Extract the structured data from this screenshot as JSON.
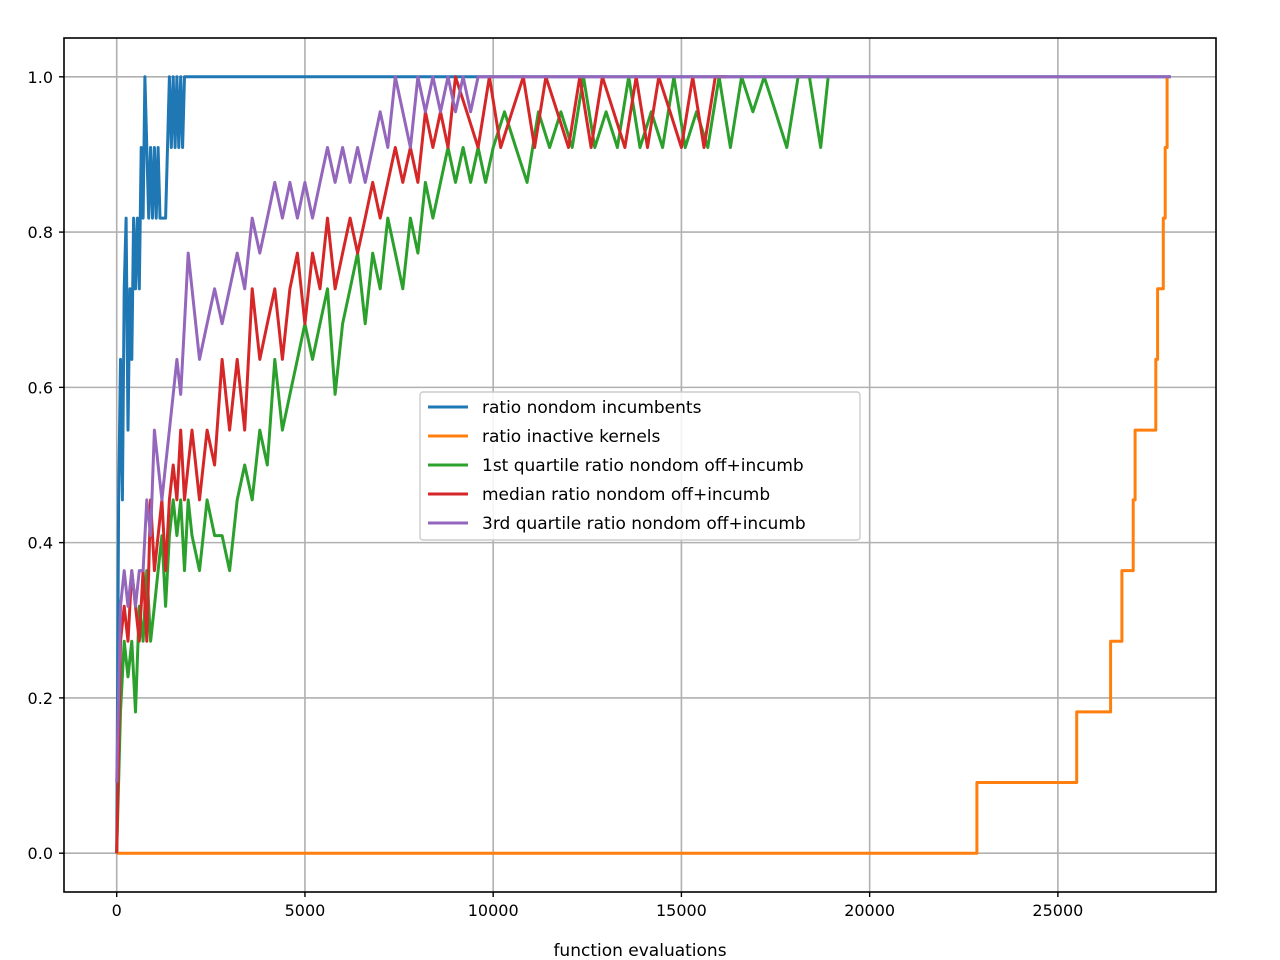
{
  "chart_data": {
    "type": "line",
    "title": "",
    "xlabel": "function evaluations",
    "ylabel": "",
    "xlim": [
      -1400,
      29200
    ],
    "ylim": [
      -0.05,
      1.05
    ],
    "xticks": [
      0,
      5000,
      10000,
      15000,
      20000,
      25000
    ],
    "xtick_labels": [
      "0",
      "5000",
      "10000",
      "15000",
      "20000",
      "25000"
    ],
    "yticks": [
      0.0,
      0.2,
      0.4,
      0.6,
      0.8,
      1.0
    ],
    "ytick_labels": [
      "0.0",
      "0.2",
      "0.4",
      "0.6",
      "0.8",
      "1.0"
    ],
    "grid": true,
    "legend_position": "center-right",
    "series": [
      {
        "name": "ratio nondom incumbents",
        "color": "#1f77b4",
        "x": [
          0,
          50,
          100,
          150,
          200,
          250,
          300,
          350,
          400,
          450,
          500,
          550,
          600,
          650,
          700,
          750,
          800,
          850,
          900,
          950,
          1000,
          1050,
          1100,
          1150,
          1200,
          1300,
          1400,
          1450,
          1500,
          1550,
          1600,
          1650,
          1700,
          1750,
          1800,
          28000
        ],
        "y": [
          0.0,
          0.455,
          0.636,
          0.455,
          0.727,
          0.818,
          0.545,
          0.727,
          0.636,
          0.818,
          0.727,
          0.818,
          0.727,
          0.909,
          0.818,
          1.0,
          0.909,
          0.818,
          0.909,
          0.818,
          0.909,
          0.818,
          0.909,
          0.818,
          0.818,
          0.818,
          1.0,
          0.909,
          1.0,
          0.909,
          1.0,
          0.909,
          1.0,
          0.909,
          1.0,
          1.0
        ]
      },
      {
        "name": "ratio inactive kernels",
        "color": "#ff7f0e",
        "x": [
          0,
          22850,
          22850,
          25500,
          25500,
          26400,
          26400,
          26700,
          26700,
          27000,
          27000,
          27050,
          27050,
          27600,
          27600,
          27650,
          27650,
          27800,
          27800,
          27850,
          27850,
          27900,
          27900
        ],
        "y": [
          0.0,
          0.0,
          0.091,
          0.091,
          0.182,
          0.182,
          0.273,
          0.273,
          0.364,
          0.364,
          0.455,
          0.455,
          0.545,
          0.545,
          0.636,
          0.636,
          0.727,
          0.727,
          0.818,
          0.818,
          0.909,
          0.909,
          1.0
        ]
      },
      {
        "name": "1st quartile ratio nondom off+incumb",
        "color": "#2ca02c",
        "x": [
          0,
          100,
          200,
          300,
          400,
          500,
          600,
          700,
          800,
          900,
          1000,
          1100,
          1200,
          1300,
          1400,
          1500,
          1600,
          1700,
          1800,
          1900,
          2000,
          2200,
          2400,
          2600,
          2800,
          3000,
          3200,
          3400,
          3600,
          3800,
          4000,
          4200,
          4400,
          4600,
          4800,
          5000,
          5200,
          5400,
          5600,
          5800,
          6000,
          6200,
          6400,
          6600,
          6800,
          7000,
          7200,
          7400,
          7600,
          7800,
          8000,
          8200,
          8400,
          8600,
          8800,
          9000,
          9200,
          9400,
          9600,
          9800,
          10000,
          10300,
          10600,
          10900,
          11200,
          11500,
          11800,
          12100,
          12400,
          12700,
          13000,
          13300,
          13600,
          13900,
          14200,
          14500,
          14800,
          15100,
          15400,
          15700,
          16000,
          16300,
          16600,
          16900,
          17200,
          17500,
          17800,
          18100,
          18400,
          18700,
          18900
        ],
        "y": [
          0.0,
          0.182,
          0.273,
          0.227,
          0.273,
          0.182,
          0.318,
          0.273,
          0.364,
          0.273,
          0.318,
          0.364,
          0.409,
          0.318,
          0.409,
          0.455,
          0.409,
          0.455,
          0.364,
          0.455,
          0.409,
          0.364,
          0.455,
          0.409,
          0.409,
          0.364,
          0.455,
          0.5,
          0.455,
          0.545,
          0.5,
          0.636,
          0.545,
          0.591,
          0.636,
          0.682,
          0.636,
          0.682,
          0.727,
          0.591,
          0.682,
          0.727,
          0.773,
          0.682,
          0.773,
          0.727,
          0.818,
          0.773,
          0.727,
          0.818,
          0.773,
          0.864,
          0.818,
          0.864,
          0.909,
          0.864,
          0.909,
          0.864,
          0.909,
          0.864,
          0.909,
          0.955,
          0.909,
          0.864,
          0.955,
          0.909,
          0.955,
          0.909,
          1.0,
          0.909,
          0.955,
          0.909,
          1.0,
          0.909,
          0.955,
          0.909,
          1.0,
          0.909,
          0.955,
          0.909,
          1.0,
          0.909,
          1.0,
          0.955,
          1.0,
          0.955,
          0.909,
          1.0,
          1.0,
          0.909,
          1.0
        ]
      },
      {
        "name": "median ratio nondom off+incumb",
        "color": "#d62728",
        "x": [
          0,
          100,
          200,
          300,
          400,
          500,
          600,
          700,
          800,
          900,
          1000,
          1100,
          1200,
          1300,
          1400,
          1500,
          1600,
          1700,
          1800,
          1900,
          2000,
          2200,
          2400,
          2600,
          2800,
          3000,
          3200,
          3400,
          3600,
          3800,
          4000,
          4200,
          4400,
          4600,
          4800,
          5000,
          5200,
          5400,
          5600,
          5800,
          6000,
          6200,
          6400,
          6600,
          6800,
          7000,
          7200,
          7400,
          7600,
          7800,
          8000,
          8200,
          8400,
          8600,
          8800,
          9000,
          9300,
          9600,
          9900,
          10200,
          10500,
          10800,
          11100,
          11400,
          11700,
          12000,
          12300,
          12600,
          12900,
          13200,
          13500,
          13800,
          14100,
          14400,
          14700,
          15000,
          15300,
          15600,
          15900,
          16200
        ],
        "y": [
          0.0,
          0.273,
          0.318,
          0.273,
          0.364,
          0.318,
          0.273,
          0.364,
          0.273,
          0.455,
          0.364,
          0.409,
          0.455,
          0.364,
          0.455,
          0.5,
          0.455,
          0.545,
          0.455,
          0.5,
          0.545,
          0.455,
          0.545,
          0.5,
          0.636,
          0.545,
          0.636,
          0.545,
          0.727,
          0.636,
          0.682,
          0.727,
          0.636,
          0.727,
          0.773,
          0.682,
          0.773,
          0.727,
          0.818,
          0.727,
          0.773,
          0.818,
          0.773,
          0.818,
          0.864,
          0.818,
          0.864,
          0.909,
          0.864,
          0.909,
          0.864,
          0.955,
          0.909,
          0.955,
          0.909,
          1.0,
          0.955,
          0.909,
          1.0,
          0.909,
          0.955,
          1.0,
          0.909,
          1.0,
          0.955,
          0.909,
          1.0,
          0.909,
          1.0,
          0.955,
          0.909,
          1.0,
          0.909,
          1.0,
          0.955,
          0.909,
          1.0,
          0.909,
          1.0,
          1.0
        ]
      },
      {
        "name": "3rd quartile ratio nondom off+incumb",
        "color": "#9467bd",
        "x": [
          0,
          100,
          200,
          300,
          400,
          500,
          600,
          700,
          800,
          900,
          1000,
          1100,
          1200,
          1300,
          1400,
          1500,
          1600,
          1700,
          1800,
          1900,
          2000,
          2200,
          2400,
          2600,
          2800,
          3000,
          3200,
          3400,
          3600,
          3800,
          4000,
          4200,
          4400,
          4600,
          4800,
          5000,
          5200,
          5400,
          5600,
          5800,
          6000,
          6200,
          6400,
          6600,
          6800,
          7000,
          7200,
          7400,
          7600,
          7800,
          8000,
          8200,
          8400,
          8600,
          8800,
          9000,
          9200,
          9400,
          9600,
          9800,
          10000,
          28000
        ],
        "y": [
          0.091,
          0.318,
          0.364,
          0.318,
          0.364,
          0.318,
          0.364,
          0.364,
          0.455,
          0.409,
          0.545,
          0.5,
          0.455,
          0.5,
          0.545,
          0.591,
          0.636,
          0.591,
          0.682,
          0.773,
          0.727,
          0.636,
          0.682,
          0.727,
          0.682,
          0.727,
          0.773,
          0.727,
          0.818,
          0.773,
          0.818,
          0.864,
          0.818,
          0.864,
          0.818,
          0.864,
          0.818,
          0.864,
          0.909,
          0.864,
          0.909,
          0.864,
          0.909,
          0.864,
          0.909,
          0.955,
          0.909,
          1.0,
          0.955,
          0.909,
          1.0,
          0.955,
          1.0,
          0.955,
          1.0,
          0.955,
          1.0,
          0.955,
          1.0,
          1.0,
          1.0,
          1.0
        ]
      }
    ]
  }
}
